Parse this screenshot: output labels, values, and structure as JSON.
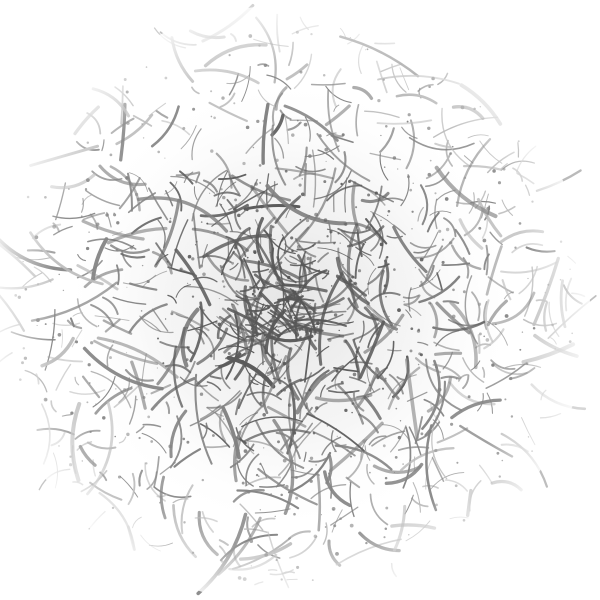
{
  "image": {
    "background_color": "#ffffff",
    "fiber_color_dark": "#555555",
    "fiber_color_mid": "#7a7a7a",
    "fiber_color_light": "#b5b5b5",
    "center_shade_color": "#d6d6d6"
  }
}
